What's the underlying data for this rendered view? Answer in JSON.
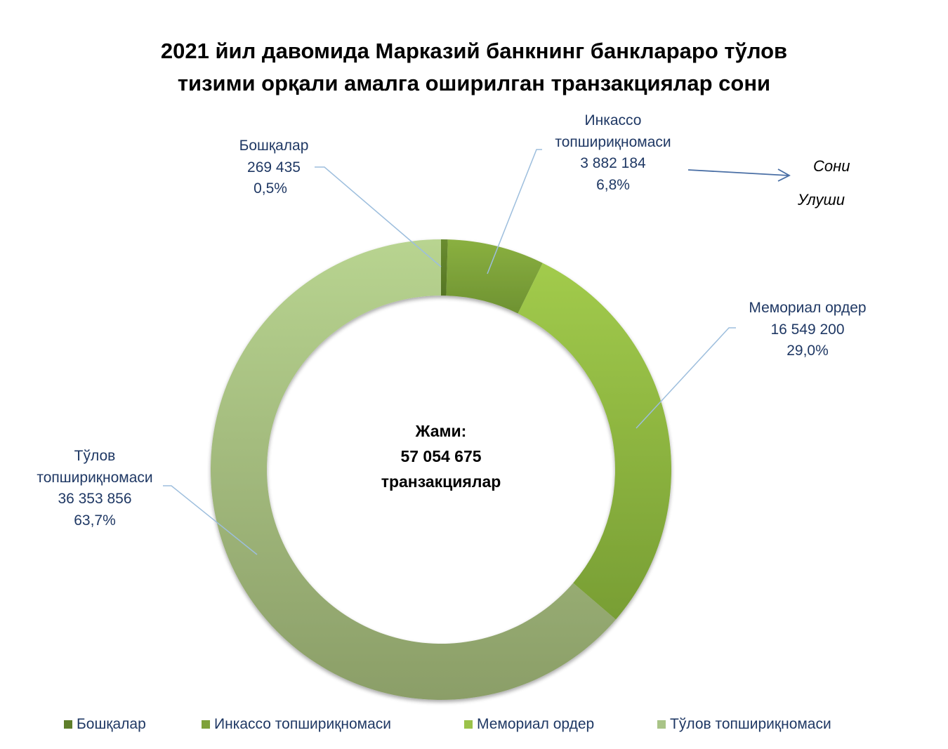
{
  "chart_data": {
    "type": "pie",
    "subtype": "donut",
    "title": "2021 йил давомида Марказий банкнинг банклараро тўлов тизими орқали амалга оширилган транзакциялар сони",
    "categories": [
      "Бошқалар",
      "Инкассо топшириқномаси",
      "Мемориал ордер",
      "Тўлов топшириқномаси"
    ],
    "values": [
      269435,
      3882184,
      16549200,
      36353856
    ],
    "value_labels": [
      "269 435",
      "3 882 184",
      "16 549 200",
      "36 353 856"
    ],
    "percentages": [
      0.5,
      6.8,
      29.0,
      63.7
    ],
    "percentage_labels": [
      "0,5%",
      "6,8%",
      "29,0%",
      "63,7%"
    ],
    "colors": [
      "#5E7E2A",
      "#7FA23A",
      "#9BC24A",
      "#A9C487"
    ],
    "total": 57054675,
    "center_label": "Жами: 57 054 675 транзакциялар",
    "legend_position": "bottom",
    "annotations": [
      "Сони",
      "Улуши"
    ]
  },
  "title": {
    "line1": "2021 йил давомида Марказий банкнинг банклараро тўлов",
    "line2": "тизими орқали амалга оширилган транзакциялар сони"
  },
  "center": {
    "line1": "Жами:",
    "line2": "57 054 675",
    "line3": "транзакциялар"
  },
  "labels": {
    "boshqalar": {
      "name": "Бошқалар",
      "value": "269 435",
      "pct": "0,5%"
    },
    "inkasso": {
      "name1": "Инкассо",
      "name2": "топшириқномаси",
      "value": "3 882 184",
      "pct": "6,8%"
    },
    "memorial": {
      "name": "Мемориал ордер",
      "value": "16 549 200",
      "pct": "29,0%"
    },
    "tulov": {
      "name1": "Тўлов",
      "name2": "топшириқномаси",
      "value": "36 353 856",
      "pct": "63,7%"
    }
  },
  "annotation": {
    "count": "Сони",
    "share": "Улуши"
  },
  "legend": {
    "items": [
      {
        "label": "Бошқалар",
        "color": "#5E7E2A"
      },
      {
        "label": "Инкассо топшириқномаси",
        "color": "#7FA23A"
      },
      {
        "label": "Мемориал ордер",
        "color": "#9BC24A"
      },
      {
        "label": "Тўлов топшириқномаси",
        "color": "#A9C487"
      }
    ]
  }
}
